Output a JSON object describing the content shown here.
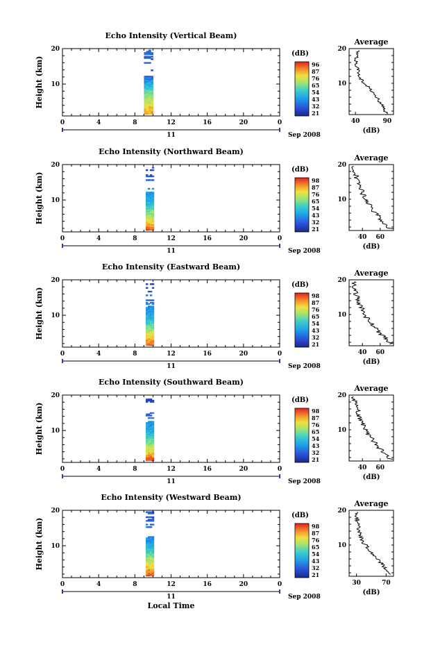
{
  "chart_data": [
    {
      "type": "heatmap",
      "title": "Echo Intensity (Vertical Beam)",
      "ylabel": "Height (km)",
      "x_ticks": [
        "0",
        "4",
        "8",
        "12",
        "16",
        "20",
        "0"
      ],
      "y_ticks": [
        "20",
        "10"
      ],
      "date_day": "11",
      "date_label": "Sep 2008",
      "xlim": [
        0,
        24
      ],
      "ylim": [
        1,
        20
      ],
      "colorbar": {
        "unit": "(dB)",
        "labels": [
          "96",
          "87",
          "76",
          "65",
          "54",
          "43",
          "32",
          "21"
        ]
      },
      "data_time_range": [
        9.0,
        10.0
      ],
      "data_height_range": [
        1.5,
        19.5
      ],
      "profile": {
        "title": "Average",
        "xlabel": "(dB)",
        "x_ticks": [
          "40",
          "90"
        ],
        "xlim": [
          30,
          100
        ],
        "y_ticks": [
          "20",
          "10"
        ],
        "heights": [
          1.5,
          3,
          4.5,
          6,
          7.5,
          9,
          10.5,
          12,
          13.5,
          15,
          16.5,
          18,
          19.5
        ],
        "values": [
          88,
          85,
          78,
          74,
          68,
          60,
          52,
          46,
          44,
          42,
          40,
          42,
          45
        ]
      }
    },
    {
      "type": "heatmap",
      "title": "Echo Intensity (Northward Beam)",
      "ylabel": "Height (km)",
      "x_ticks": [
        "0",
        "4",
        "8",
        "12",
        "16",
        "20",
        "0"
      ],
      "y_ticks": [
        "20",
        "10"
      ],
      "date_day": "11",
      "date_label": "Sep 2008",
      "xlim": [
        0,
        24
      ],
      "ylim": [
        1,
        20
      ],
      "colorbar": {
        "unit": "(dB)",
        "labels": [
          "98",
          "87",
          "76",
          "65",
          "54",
          "43",
          "32",
          "21"
        ]
      },
      "data_time_range": [
        9.2,
        10.1
      ],
      "data_height_range": [
        1.5,
        19.5
      ],
      "profile": {
        "title": "Average",
        "xlabel": "(dB)",
        "x_ticks": [
          "40",
          "60"
        ],
        "xlim": [
          25,
          75
        ],
        "y_ticks": [
          "20",
          "10"
        ],
        "heights": [
          1.5,
          3,
          4.5,
          6,
          7.5,
          9,
          10.5,
          12,
          13.5,
          15,
          16.5,
          18,
          19.5
        ],
        "values": [
          72,
          65,
          60,
          55,
          50,
          46,
          42,
          40,
          37,
          35,
          33,
          31,
          30
        ]
      }
    },
    {
      "type": "heatmap",
      "title": "Echo Intensity (Eastward Beam)",
      "ylabel": "Height (km)",
      "x_ticks": [
        "0",
        "4",
        "8",
        "12",
        "16",
        "20",
        "0"
      ],
      "y_ticks": [
        "20",
        "10"
      ],
      "date_day": "11",
      "date_label": "Sep 2008",
      "xlim": [
        0,
        24
      ],
      "ylim": [
        1,
        20
      ],
      "colorbar": {
        "unit": "(dB)",
        "labels": [
          "98",
          "87",
          "76",
          "65",
          "54",
          "43",
          "32",
          "21"
        ]
      },
      "data_time_range": [
        9.2,
        10.1
      ],
      "data_height_range": [
        1.5,
        19.5
      ],
      "profile": {
        "title": "Average",
        "xlabel": "(dB)",
        "x_ticks": [
          "40",
          "60"
        ],
        "xlim": [
          25,
          75
        ],
        "y_ticks": [
          "20",
          "10"
        ],
        "heights": [
          1.5,
          3,
          4.5,
          6,
          7.5,
          9,
          10.5,
          12,
          13.5,
          15,
          16.5,
          18,
          19.5
        ],
        "values": [
          72,
          66,
          60,
          55,
          50,
          45,
          42,
          39,
          36,
          34,
          32,
          30,
          31
        ]
      }
    },
    {
      "type": "heatmap",
      "title": "Echo Intensity (Southward Beam)",
      "ylabel": "Height (km)",
      "x_ticks": [
        "0",
        "4",
        "8",
        "12",
        "16",
        "20",
        "0"
      ],
      "y_ticks": [
        "20",
        "10"
      ],
      "date_day": "11",
      "date_label": "Sep 2008",
      "xlim": [
        0,
        24
      ],
      "ylim": [
        1,
        20
      ],
      "colorbar": {
        "unit": "(dB)",
        "labels": [
          "98",
          "87",
          "76",
          "65",
          "54",
          "43",
          "32",
          "21"
        ]
      },
      "data_time_range": [
        9.2,
        10.1
      ],
      "data_height_range": [
        1.5,
        19.5
      ],
      "profile": {
        "title": "Average",
        "xlabel": "(dB)",
        "x_ticks": [
          "40",
          "60"
        ],
        "xlim": [
          25,
          75
        ],
        "y_ticks": [
          "20",
          "10"
        ],
        "heights": [
          1.5,
          3,
          4.5,
          6,
          7.5,
          9,
          10.5,
          12,
          13.5,
          15,
          16.5,
          18,
          19.5
        ],
        "values": [
          72,
          66,
          60,
          55,
          50,
          46,
          42,
          40,
          37,
          35,
          33,
          31,
          30
        ]
      }
    },
    {
      "type": "heatmap",
      "title": "Echo Intensity (Westward Beam)",
      "ylabel": "Height (km)",
      "x_ticks": [
        "0",
        "4",
        "8",
        "12",
        "16",
        "20",
        "0"
      ],
      "y_ticks": [
        "20",
        "10"
      ],
      "date_day": "11",
      "date_label": "Sep 2008",
      "xlabel": "Local Time",
      "xlim": [
        0,
        24
      ],
      "ylim": [
        1,
        20
      ],
      "colorbar": {
        "unit": "(dB)",
        "labels": [
          "98",
          "87",
          "76",
          "65",
          "54",
          "43",
          "32",
          "21"
        ]
      },
      "data_time_range": [
        9.2,
        10.1
      ],
      "data_height_range": [
        1.5,
        19.5
      ],
      "profile": {
        "title": "Average",
        "xlabel": "(dB)",
        "x_ticks": [
          "30",
          "70"
        ],
        "xlim": [
          20,
          80
        ],
        "y_ticks": [
          "20",
          "10"
        ],
        "heights": [
          1.5,
          3,
          4.5,
          6,
          7.5,
          9,
          10.5,
          12,
          13.5,
          15,
          16.5,
          18,
          19.5
        ],
        "values": [
          76,
          70,
          64,
          58,
          52,
          46,
          40,
          37,
          34,
          33,
          32,
          30,
          31
        ]
      }
    }
  ]
}
